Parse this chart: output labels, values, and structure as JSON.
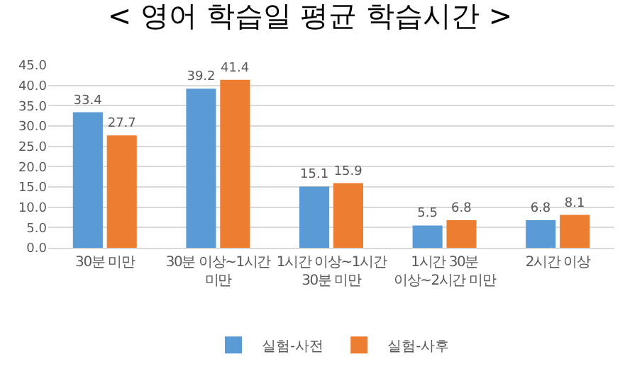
{
  "chart_data": {
    "type": "bar",
    "title": "< 영어 학습일 평균 학습시간 >",
    "categories": [
      "30분 미만",
      "30분 이상~1시간\n미만",
      "1시간 이상~1시간\n30분 미만",
      "1시간 30분\n이상~2시간 미만",
      "2시간 이상"
    ],
    "series": [
      {
        "name": "실험-사전",
        "color": "#5b9bd5",
        "values": [
          33.4,
          39.2,
          15.1,
          5.5,
          6.8
        ]
      },
      {
        "name": "실험-사후",
        "color": "#ed7d31",
        "values": [
          27.7,
          41.4,
          15.9,
          6.8,
          8.1
        ]
      }
    ],
    "ylim": [
      0,
      45
    ],
    "yticks": [
      {
        "value": 0,
        "label": "0.0"
      },
      {
        "value": 5,
        "label": "5.0"
      },
      {
        "value": 10,
        "label": "10.0"
      },
      {
        "value": 15,
        "label": "15.0"
      },
      {
        "value": 20,
        "label": "20.0"
      },
      {
        "value": 25,
        "label": "25.0"
      },
      {
        "value": 30,
        "label": "30.0"
      },
      {
        "value": 35,
        "label": "35.0"
      },
      {
        "value": 40,
        "label": "40.0"
      },
      {
        "value": 45,
        "label": "45.0"
      }
    ],
    "grid": "y",
    "legend": "bottom",
    "data_labels": true
  }
}
